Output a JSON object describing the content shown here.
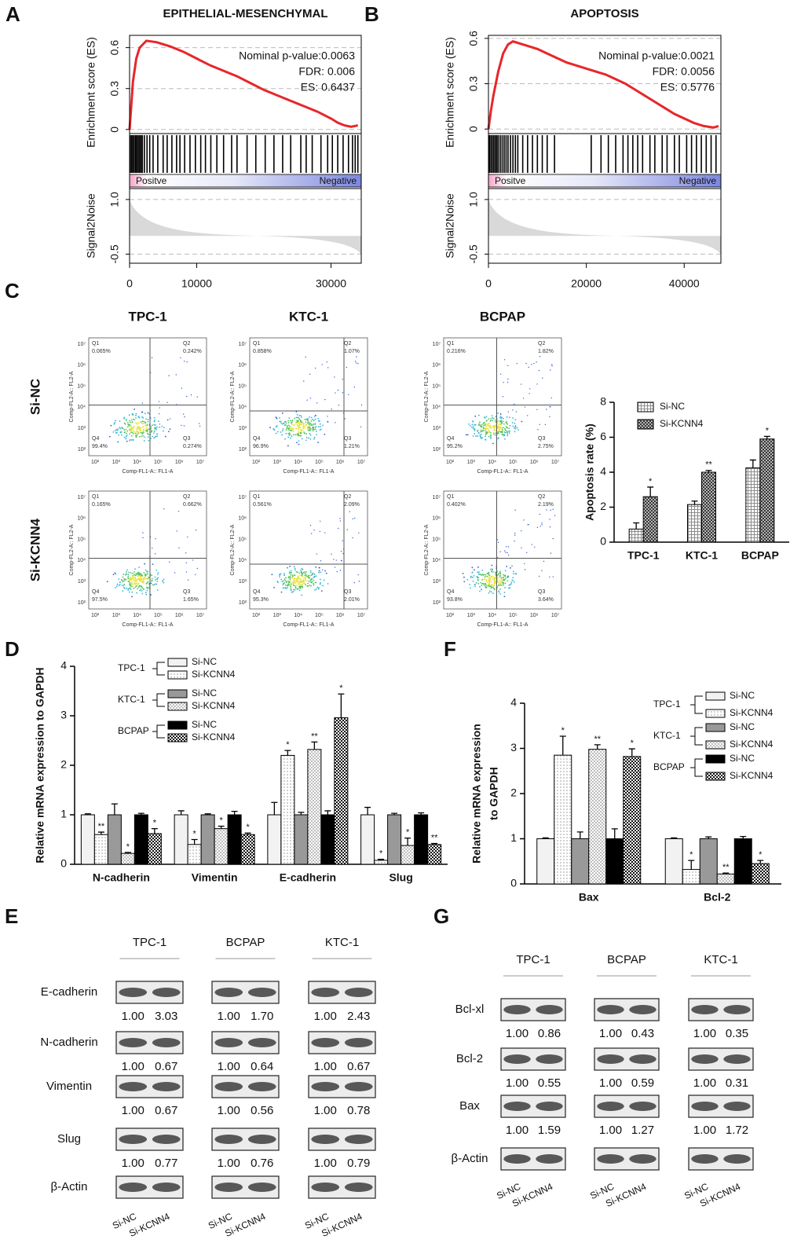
{
  "chart_data": [
    {
      "type": "line",
      "panel": "A",
      "title": "EPITHELIAL-MESENCHYMAL",
      "ylabel": "Enrichment score (ES)",
      "annotations": [
        "Nominal p-value:0.0063",
        "FDR: 0.006",
        "ES: 0.6437"
      ],
      "color": "#e8262a",
      "x": [
        0,
        500,
        1000,
        1500,
        2500,
        4000,
        6000,
        8000,
        10000,
        12000,
        14000,
        16000,
        18000,
        20000,
        22000,
        24000,
        26000,
        28000,
        30000,
        31000,
        32000,
        33000,
        34000
      ],
      "values": [
        0,
        0.35,
        0.52,
        0.6,
        0.65,
        0.64,
        0.61,
        0.57,
        0.52,
        0.47,
        0.43,
        0.39,
        0.34,
        0.29,
        0.25,
        0.21,
        0.17,
        0.13,
        0.08,
        0.05,
        0.03,
        0.02,
        0.03
      ],
      "xlim": [
        0,
        34500
      ],
      "xticks": [
        0,
        10000,
        30000
      ],
      "ylim": [
        -0.03,
        0.69
      ],
      "yticks": [
        0,
        0.3,
        0.6
      ],
      "hits": [
        100,
        300,
        500,
        700,
        900,
        1100,
        1300,
        1500,
        1700,
        1900,
        2200,
        2600,
        3000,
        3500,
        4200,
        5000,
        5600,
        6300,
        7000,
        7500,
        8200,
        9000,
        9800,
        10600,
        11300,
        12100,
        13000,
        14000,
        15200,
        16000,
        17500,
        18800,
        20200,
        21500,
        22800,
        24000,
        25500,
        26300,
        27200,
        28500,
        29500,
        30200,
        31000,
        31800,
        32600,
        33200,
        33600,
        34000
      ],
      "rank_labels": [
        "Positve",
        "Negative"
      ],
      "signal2noise": {
        "ylabel": "Signal2Noise",
        "ylim": [
          -0.75,
          1.3
        ],
        "yticks": [
          {
            "value": 1,
            "label": "1.0"
          },
          -0.5
        ]
      }
    },
    {
      "type": "line",
      "panel": "B",
      "title": "APOPTOSIS",
      "ylabel": "Enrichment score (ES)",
      "annotations": [
        "Nominal p-value:0.0021",
        "FDR: 0.0056",
        "ES: 0.5776"
      ],
      "color": "#e8262a",
      "x": [
        0,
        500,
        1000,
        2000,
        3000,
        4000,
        5000,
        6000,
        8000,
        10000,
        12000,
        14000,
        16000,
        18000,
        20000,
        22000,
        24000,
        26000,
        28000,
        30000,
        32000,
        34000,
        36000,
        38000,
        40000,
        42000,
        44000,
        46000,
        47000
      ],
      "values": [
        0,
        0.12,
        0.22,
        0.38,
        0.5,
        0.56,
        0.58,
        0.57,
        0.55,
        0.53,
        0.5,
        0.47,
        0.44,
        0.42,
        0.4,
        0.38,
        0.36,
        0.33,
        0.3,
        0.26,
        0.22,
        0.18,
        0.14,
        0.1,
        0.07,
        0.04,
        0.02,
        0.01,
        0.02
      ],
      "xlim": [
        0,
        47500
      ],
      "xticks": [
        0,
        20000,
        40000
      ],
      "ylim": [
        -0.03,
        0.62
      ],
      "yticks": [
        0,
        0.3,
        0.6
      ],
      "hits": [
        200,
        500,
        800,
        1100,
        1400,
        1700,
        2000,
        2400,
        2800,
        3200,
        3600,
        4000,
        4500,
        5000,
        5500,
        6000,
        7000,
        8000,
        9000,
        10000,
        11000,
        12000,
        13500,
        21000,
        23000,
        24500,
        26000,
        27500,
        28500,
        29500,
        30500,
        31500,
        33000,
        34000,
        35500,
        36500,
        38000,
        39000,
        40500,
        41500,
        42500,
        43500,
        44500,
        45500,
        46500
      ],
      "rank_labels": [
        "Positve",
        "Negative"
      ],
      "signal2noise": {
        "ylabel": "Signal2Noise",
        "ylim": [
          -0.75,
          1.3
        ],
        "yticks": [
          {
            "value": 1,
            "label": "1.0"
          },
          -0.5
        ]
      }
    },
    {
      "type": "bar",
      "ylabel": "Apoptosis rate (%)",
      "categories": [
        "TPC-1",
        "KTC-1",
        "BCPAP"
      ],
      "series": [
        {
          "name": "Si-NC",
          "color": "#8c8c8c",
          "pattern": "grid",
          "values": [
            0.75,
            2.15,
            4.25
          ],
          "errors": [
            0.35,
            0.2,
            0.45
          ]
        },
        {
          "name": "Si-KCNN4",
          "color": "#333333",
          "pattern": "crosshatch",
          "values": [
            2.6,
            4.0,
            5.9
          ],
          "errors": [
            0.55,
            0.1,
            0.15
          ],
          "significance": [
            "*",
            "**",
            "*"
          ]
        }
      ],
      "ylim": [
        0,
        8
      ],
      "yticks": [
        0,
        2,
        4,
        6,
        8
      ]
    },
    {
      "type": "bar",
      "panel": "D",
      "ylabel": "Relative mRNA expression to GAPDH",
      "categories": [
        "N-cadherin",
        "Vimentin",
        "E-cadherin",
        "Slug"
      ],
      "legend_groups": [
        "TPC-1",
        "KTC-1",
        "BCPAP"
      ],
      "series": [
        {
          "name": "Si-NC",
          "color": "#f2f2f2",
          "values": [
            1.0,
            1.0,
            1.0,
            1.0
          ],
          "errors": [
            0.02,
            0.08,
            0.25,
            0.15
          ]
        },
        {
          "name": "Si-KCNN4",
          "color": "#b0b0b0",
          "pattern": "dots",
          "values": [
            0.6,
            0.4,
            2.2,
            0.08
          ],
          "errors": [
            0.05,
            0.1,
            0.1,
            0.02
          ],
          "significance": [
            "**",
            "*",
            "*",
            "*"
          ]
        },
        {
          "name": "Si-NC",
          "color": "#999999",
          "values": [
            1.0,
            1.0,
            1.0,
            1.0
          ],
          "errors": [
            0.22,
            0.02,
            0.05,
            0.03
          ]
        },
        {
          "name": "Si-KCNN4",
          "color": "#bdbdbd",
          "pattern": "checker",
          "values": [
            0.22,
            0.72,
            2.32,
            0.38
          ],
          "errors": [
            0.02,
            0.05,
            0.15,
            0.15
          ],
          "significance": [
            "*",
            "*",
            "**",
            "*"
          ]
        },
        {
          "name": "Si-NC",
          "color": "#000000",
          "values": [
            1.0,
            1.0,
            1.0,
            1.0
          ],
          "errors": [
            0.03,
            0.07,
            0.08,
            0.04
          ]
        },
        {
          "name": "Si-KCNN4",
          "color": "#111111",
          "pattern": "checker",
          "values": [
            0.62,
            0.6,
            2.96,
            0.4
          ],
          "errors": [
            0.1,
            0.03,
            0.48,
            0.02
          ],
          "significance": [
            "*",
            "*",
            "*",
            "**"
          ]
        }
      ],
      "ylim": [
        0,
        4
      ],
      "yticks": [
        0,
        1,
        2,
        3,
        4
      ]
    },
    {
      "type": "bar",
      "panel": "F",
      "ylabel": [
        "Relative mRNA expression",
        "to GAPDH"
      ],
      "categories": [
        "Bax",
        "Bcl-2"
      ],
      "legend_groups": [
        "TPC-1",
        "KTC-1",
        "BCPAP"
      ],
      "series": [
        {
          "name": "Si-NC",
          "color": "#f2f2f2",
          "values": [
            1.0,
            1.0
          ],
          "errors": [
            0.02,
            0.02
          ]
        },
        {
          "name": "Si-KCNN4",
          "color": "#b0b0b0",
          "pattern": "dots",
          "values": [
            2.85,
            0.32
          ],
          "errors": [
            0.42,
            0.2
          ],
          "significance": [
            "*",
            "*"
          ]
        },
        {
          "name": "Si-NC",
          "color": "#999999",
          "values": [
            1.0,
            1.0
          ],
          "errors": [
            0.15,
            0.04
          ]
        },
        {
          "name": "Si-KCNN4",
          "color": "#bdbdbd",
          "pattern": "checker",
          "values": [
            2.98,
            0.22
          ],
          "errors": [
            0.1,
            0.02
          ],
          "significance": [
            "**",
            "**"
          ]
        },
        {
          "name": "Si-NC",
          "color": "#000000",
          "values": [
            1.0,
            1.0
          ],
          "errors": [
            0.22,
            0.05
          ]
        },
        {
          "name": "Si-KCNN4",
          "color": "#111111",
          "pattern": "checker",
          "values": [
            2.82,
            0.45
          ],
          "errors": [
            0.17,
            0.07
          ],
          "significance": [
            "*",
            "*"
          ]
        }
      ],
      "ylim": [
        0,
        4
      ],
      "yticks": [
        0,
        1,
        2,
        3,
        4
      ]
    }
  ],
  "flow_cytometry": {
    "panel": "C",
    "columns": [
      "TPC-1",
      "KTC-1",
      "BCPAP"
    ],
    "rows": [
      "Si-NC",
      "Si-KCNN4"
    ],
    "x_label": "Comp-FL1-A:: FL1-A",
    "y_label": "Comp-FL2-A:: FL2-A",
    "axis_ticks": [
      "10²",
      "10³",
      "10⁴",
      "10⁵",
      "10⁶",
      "10⁷"
    ],
    "quadrant_names": [
      "Q1",
      "Q2",
      "Q3",
      "Q4"
    ],
    "plots": [
      [
        [
          "0.065%",
          "0.242%",
          "0.274%",
          "99.4%"
        ],
        [
          "0.858%",
          "1.07%",
          "1.21%",
          "96.9%"
        ],
        [
          "0.216%",
          "1.82%",
          "2.75%",
          "95.2%"
        ]
      ],
      [
        [
          "0.165%",
          "0.662%",
          "1.65%",
          "97.5%"
        ],
        [
          "0.561%",
          "2.09%",
          "2.01%",
          "95.3%"
        ],
        [
          "0.402%",
          "2.19%",
          "3.64%",
          "93.8%"
        ]
      ]
    ]
  },
  "western_blots": [
    {
      "panel": "E",
      "columns": [
        "TPC-1",
        "BCPAP",
        "KTC-1"
      ],
      "lanes": [
        "Si-NC",
        "Si-KCNN4"
      ],
      "rows": [
        {
          "label": "E-cadherin",
          "values": [
            [
              "1.00",
              "3.03"
            ],
            [
              "1.00",
              "1.70"
            ],
            [
              "1.00",
              "2.43"
            ]
          ]
        },
        {
          "label": "N-cadherin",
          "values": [
            [
              "1.00",
              "0.67"
            ],
            [
              "1.00",
              "0.64"
            ],
            [
              "1.00",
              "0.67"
            ]
          ]
        },
        {
          "label": "Vimentin",
          "values": [
            [
              "1.00",
              "0.67"
            ],
            [
              "1.00",
              "0.56"
            ],
            [
              "1.00",
              "0.78"
            ]
          ]
        },
        {
          "label": "Slug",
          "values": [
            [
              "1.00",
              "0.77"
            ],
            [
              "1.00",
              "0.76"
            ],
            [
              "1.00",
              "0.79"
            ]
          ]
        },
        {
          "label": "β-Actin"
        }
      ]
    },
    {
      "panel": "G",
      "columns": [
        "TPC-1",
        "BCPAP",
        "KTC-1"
      ],
      "lanes": [
        "Si-NC",
        "Si-KCNN4"
      ],
      "rows": [
        {
          "label": "Bcl-xl",
          "values": [
            [
              "1.00",
              "0.86"
            ],
            [
              "1.00",
              "0.43"
            ],
            [
              "1.00",
              "0.35"
            ]
          ]
        },
        {
          "label": "Bcl-2",
          "values": [
            [
              "1.00",
              "0.55"
            ],
            [
              "1.00",
              "0.59"
            ],
            [
              "1.00",
              "0.31"
            ]
          ]
        },
        {
          "label": "Bax",
          "values": [
            [
              "1.00",
              "1.59"
            ],
            [
              "1.00",
              "1.27"
            ],
            [
              "1.00",
              "1.72"
            ]
          ]
        },
        {
          "label": "β-Actin"
        }
      ]
    }
  ]
}
